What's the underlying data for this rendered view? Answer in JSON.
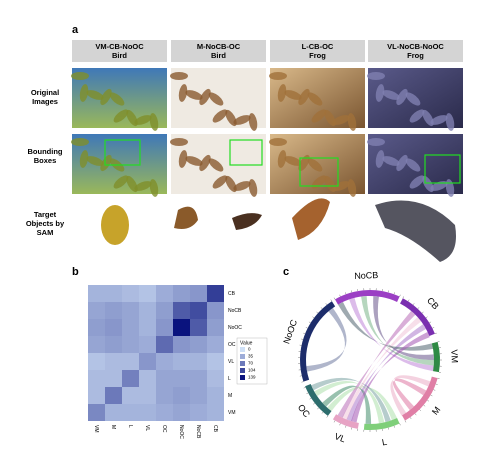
{
  "panel_a": {
    "label": "a",
    "columns": [
      {
        "title": "VM-CB-NoOC",
        "subtitle": "Bird"
      },
      {
        "title": "M-NoCB-OC",
        "subtitle": "Bird"
      },
      {
        "title": "L-CB-OC",
        "subtitle": "Frog"
      },
      {
        "title": "VL-NoCB-NoOC",
        "subtitle": "Frog"
      }
    ],
    "rows": [
      "Original Images",
      "Bounding Boxes",
      "Target Objects by SAM"
    ]
  },
  "panel_b": {
    "label": "b",
    "type": "heatmap",
    "categories": [
      "VM",
      "M",
      "L",
      "VL",
      "OC",
      "NoOC",
      "NoCB",
      "CB"
    ],
    "values": [
      [
        60,
        30,
        30,
        30,
        35,
        40,
        35,
        30
      ],
      [
        25,
        70,
        25,
        25,
        40,
        45,
        40,
        30
      ],
      [
        25,
        25,
        65,
        25,
        40,
        40,
        40,
        25
      ],
      [
        20,
        25,
        25,
        50,
        35,
        30,
        30,
        20
      ],
      [
        40,
        45,
        40,
        35,
        80,
        50,
        45,
        35
      ],
      [
        45,
        50,
        40,
        30,
        50,
        139,
        90,
        45
      ],
      [
        40,
        45,
        40,
        30,
        45,
        90,
        100,
        50
      ],
      [
        30,
        30,
        25,
        20,
        35,
        45,
        50,
        110
      ]
    ],
    "zlim": [
      0,
      139
    ],
    "colormap": [
      "#cfe0f6",
      "#0a137e"
    ],
    "legend": {
      "title": "Value",
      "ticks": [
        0,
        35,
        70,
        104,
        139
      ]
    }
  },
  "panel_c": {
    "label": "c",
    "type": "chord",
    "segments": [
      {
        "name": "NoCB",
        "color": "#9b3fc4"
      },
      {
        "name": "CB",
        "color": "#7a2fb0"
      },
      {
        "name": "VM",
        "color": "#2f8a45"
      },
      {
        "name": "M",
        "color": "#e07fa6"
      },
      {
        "name": "L",
        "color": "#7fcf7a"
      },
      {
        "name": "VL",
        "color": "#e7a3c4"
      },
      {
        "name": "OC",
        "color": "#2d6d6d"
      },
      {
        "name": "NoOC",
        "color": "#1d2d6b"
      }
    ]
  }
}
